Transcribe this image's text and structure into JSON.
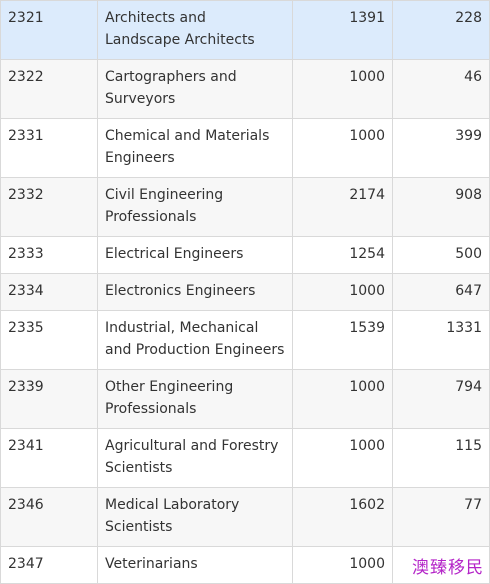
{
  "table": {
    "rows": [
      {
        "code": "2321",
        "occupation": "Architects and Landscape Architects",
        "col3": "1391",
        "col4": "228",
        "selected": true
      },
      {
        "code": "2322",
        "occupation": "Cartographers and Surveyors",
        "col3": "1000",
        "col4": "46"
      },
      {
        "code": "2331",
        "occupation": "Chemical and Materials Engineers",
        "col3": "1000",
        "col4": "399"
      },
      {
        "code": "2332",
        "occupation": "Civil Engineering Professionals",
        "col3": "2174",
        "col4": "908"
      },
      {
        "code": "2333",
        "occupation": "Electrical Engineers",
        "col3": "1254",
        "col4": "500"
      },
      {
        "code": "2334",
        "occupation": "Electronics Engineers",
        "col3": "1000",
        "col4": "647"
      },
      {
        "code": "2335",
        "occupation": "Industrial, Mechanical and Production Engineers",
        "col3": "1539",
        "col4": "1331"
      },
      {
        "code": "2339",
        "occupation": "Other Engineering Professionals",
        "col3": "1000",
        "col4": "794"
      },
      {
        "code": "2341",
        "occupation": "Agricultural and Forestry Scientists",
        "col3": "1000",
        "col4": "115"
      },
      {
        "code": "2346",
        "occupation": "Medical Laboratory Scientists",
        "col3": "1602",
        "col4": "77"
      },
      {
        "code": "2347",
        "occupation": "Veterinarians",
        "col3": "1000",
        "col4": ""
      }
    ]
  },
  "watermark": {
    "text": "澳臻移民"
  },
  "colors": {
    "selected_row": "#dcebfc",
    "alt_row": "#f7f7f7",
    "border": "#d9d9d9",
    "watermark": "#b424c8"
  }
}
